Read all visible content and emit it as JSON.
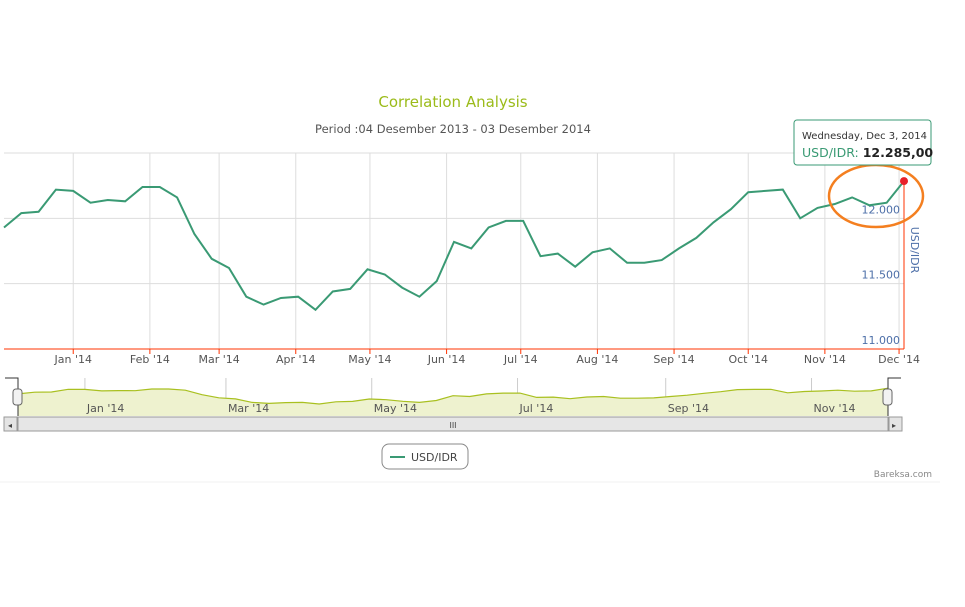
{
  "chart_data": {
    "type": "line",
    "title": "Correlation Analysis",
    "subtitle": "Period :04 Desember 2013 - 03 Desember 2014",
    "ylabel": "USD/IDR",
    "ylim": [
      11000,
      12500
    ],
    "yticks": [
      "11.000",
      "11.500",
      "12.000"
    ],
    "ytick_values": [
      11000,
      11500,
      12000
    ],
    "xticks": [
      "Jan '14",
      "Feb '14",
      "Mar '14",
      "Apr '14",
      "May '14",
      "Jun '14",
      "Jul '14",
      "Aug '14",
      "Sep '14",
      "Oct '14",
      "Nov '14",
      "Dec '14"
    ],
    "xtick_dates": [
      "2014-01-01",
      "2014-02-01",
      "2014-03-01",
      "2014-04-01",
      "2014-05-01",
      "2014-06-01",
      "2014-07-01",
      "2014-08-01",
      "2014-09-01",
      "2014-10-01",
      "2014-11-01",
      "2014-12-01"
    ],
    "xlim": [
      "2013-12-04",
      "2014-12-03"
    ],
    "grid": true,
    "legend_position": "bottom-center",
    "series": [
      {
        "name": "USD/IDR",
        "color": "#3a9a74",
        "x": [
          "2013-12-04",
          "2013-12-11",
          "2013-12-18",
          "2013-12-25",
          "2014-01-01",
          "2014-01-08",
          "2014-01-15",
          "2014-01-22",
          "2014-01-29",
          "2014-02-05",
          "2014-02-12",
          "2014-02-19",
          "2014-02-26",
          "2014-03-05",
          "2014-03-12",
          "2014-03-19",
          "2014-03-26",
          "2014-04-02",
          "2014-04-09",
          "2014-04-16",
          "2014-04-23",
          "2014-04-30",
          "2014-05-07",
          "2014-05-14",
          "2014-05-21",
          "2014-05-28",
          "2014-06-04",
          "2014-06-11",
          "2014-06-18",
          "2014-06-25",
          "2014-07-02",
          "2014-07-09",
          "2014-07-16",
          "2014-07-23",
          "2014-07-30",
          "2014-08-06",
          "2014-08-13",
          "2014-08-20",
          "2014-08-27",
          "2014-09-03",
          "2014-09-10",
          "2014-09-17",
          "2014-09-24",
          "2014-10-01",
          "2014-10-08",
          "2014-10-15",
          "2014-10-22",
          "2014-10-29",
          "2014-11-05",
          "2014-11-12",
          "2014-11-19",
          "2014-11-26",
          "2014-12-03"
        ],
        "y": [
          11930,
          12040,
          12050,
          12220,
          12210,
          12120,
          12140,
          12130,
          12240,
          12240,
          12160,
          11880,
          11690,
          11620,
          11400,
          11340,
          11390,
          11400,
          11300,
          11440,
          11460,
          11610,
          11570,
          11470,
          11400,
          11520,
          11820,
          11770,
          11930,
          11980,
          11980,
          11710,
          11730,
          11630,
          11740,
          11770,
          11660,
          11660,
          11680,
          11770,
          11850,
          11970,
          12070,
          12200,
          12210,
          12220,
          12000,
          12080,
          12110,
          12160,
          12100,
          12120,
          12285
        ]
      }
    ],
    "tooltip": {
      "date": "Wednesday, Dec 3, 2014",
      "series": "USD/IDR",
      "value": "12.285,00"
    },
    "navigator": {
      "xticks": [
        "Jan '14",
        "Mar '14",
        "May '14",
        "Jul '14",
        "Sep '14",
        "Nov '14"
      ],
      "xtick_dates": [
        "2014-01-01",
        "2014-03-01",
        "2014-05-01",
        "2014-07-01",
        "2014-09-01",
        "2014-11-01"
      ],
      "fill": "#eef2cf",
      "line": "#a9c020"
    },
    "credit": "Bareksa.com",
    "annotation_color": "#f47f20"
  }
}
